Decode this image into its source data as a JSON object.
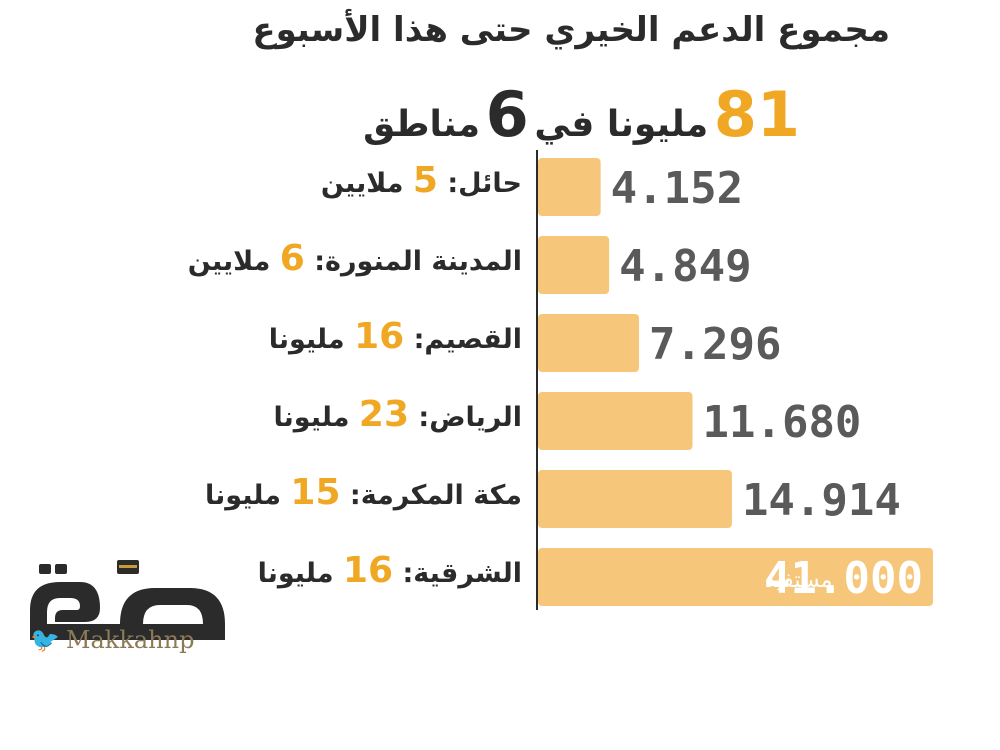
{
  "title": "مجموع الدعم الخيري حتى هذا الأسبوع",
  "headline": {
    "total": "81",
    "unit": "مليونا في",
    "regions_count": "6",
    "regions_word": "مناطق"
  },
  "colors": {
    "bar": "#f6c77b",
    "highlight": "#f0a824",
    "value_text": "#5a5a5a",
    "text": "#2b2b2b"
  },
  "regions": [
    {
      "name": "حائل:",
      "amount": "5",
      "unit": "ملايين"
    },
    {
      "name": "المدينة المنورة:",
      "amount": "6",
      "unit": "ملايين"
    },
    {
      "name": "القصيم:",
      "amount": "16",
      "unit": "مليونا"
    },
    {
      "name": "الرياض:",
      "amount": "23",
      "unit": "مليونا"
    },
    {
      "name": "مكة المكرمة:",
      "amount": "15",
      "unit": "مليونا"
    },
    {
      "name": "الشرقية:",
      "amount": "16",
      "unit": "مليونا"
    }
  ],
  "chart_data": {
    "type": "bar",
    "orientation": "horizontal",
    "categories": [
      "حائل",
      "المدينة المنورة",
      "القصيم",
      "الرياض",
      "مكة المكرمة",
      "الشرقية"
    ],
    "values": [
      4.152,
      4.849,
      7.296,
      11.68,
      14.914,
      41.0
    ],
    "value_labels": [
      "4.152",
      "4.849",
      "7.296",
      "11.680",
      "14.914",
      "41.000"
    ],
    "last_bar_suffix": "مستفيد"
  },
  "branding": {
    "logo_text": "مكة",
    "handle": "Makkahnp",
    "twitter_icon": "twitter-bird-icon"
  }
}
